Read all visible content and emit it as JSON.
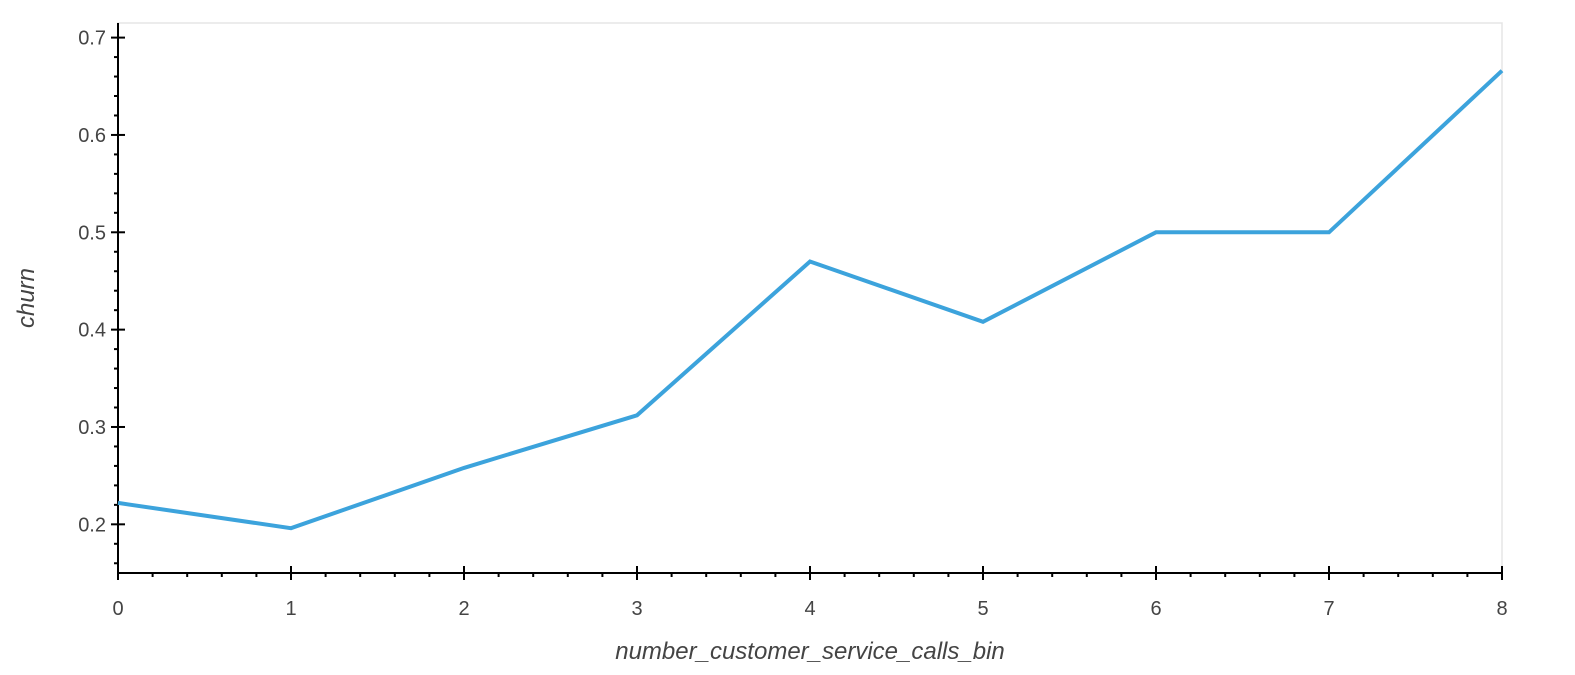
{
  "colors": {
    "line": "#3ca3dc",
    "axis": "#000000",
    "frame": "#e5e5e5",
    "text": "#444444"
  },
  "chart_data": {
    "type": "line",
    "title": "",
    "xlabel": "number_customer_service_calls_bin",
    "ylabel": "churn",
    "xlim": [
      0,
      8
    ],
    "ylim": [
      0.15,
      0.715
    ],
    "x_ticks": [
      0,
      1,
      2,
      3,
      4,
      5,
      6,
      7,
      8
    ],
    "y_ticks": [
      0.2,
      0.3,
      0.4,
      0.5,
      0.6,
      0.7
    ],
    "x_tick_labels": [
      "0",
      "1",
      "2",
      "3",
      "4",
      "5",
      "6",
      "7",
      "8"
    ],
    "y_tick_labels": [
      "0.2",
      "0.3",
      "0.4",
      "0.5",
      "0.6",
      "0.7"
    ],
    "grid": false,
    "legend": false,
    "series": [
      {
        "x": [
          0,
          1,
          2,
          3,
          4,
          5,
          6,
          7,
          8
        ],
        "y": [
          0.222,
          0.196,
          0.258,
          0.312,
          0.47,
          0.408,
          0.5,
          0.5,
          0.666
        ]
      }
    ]
  }
}
